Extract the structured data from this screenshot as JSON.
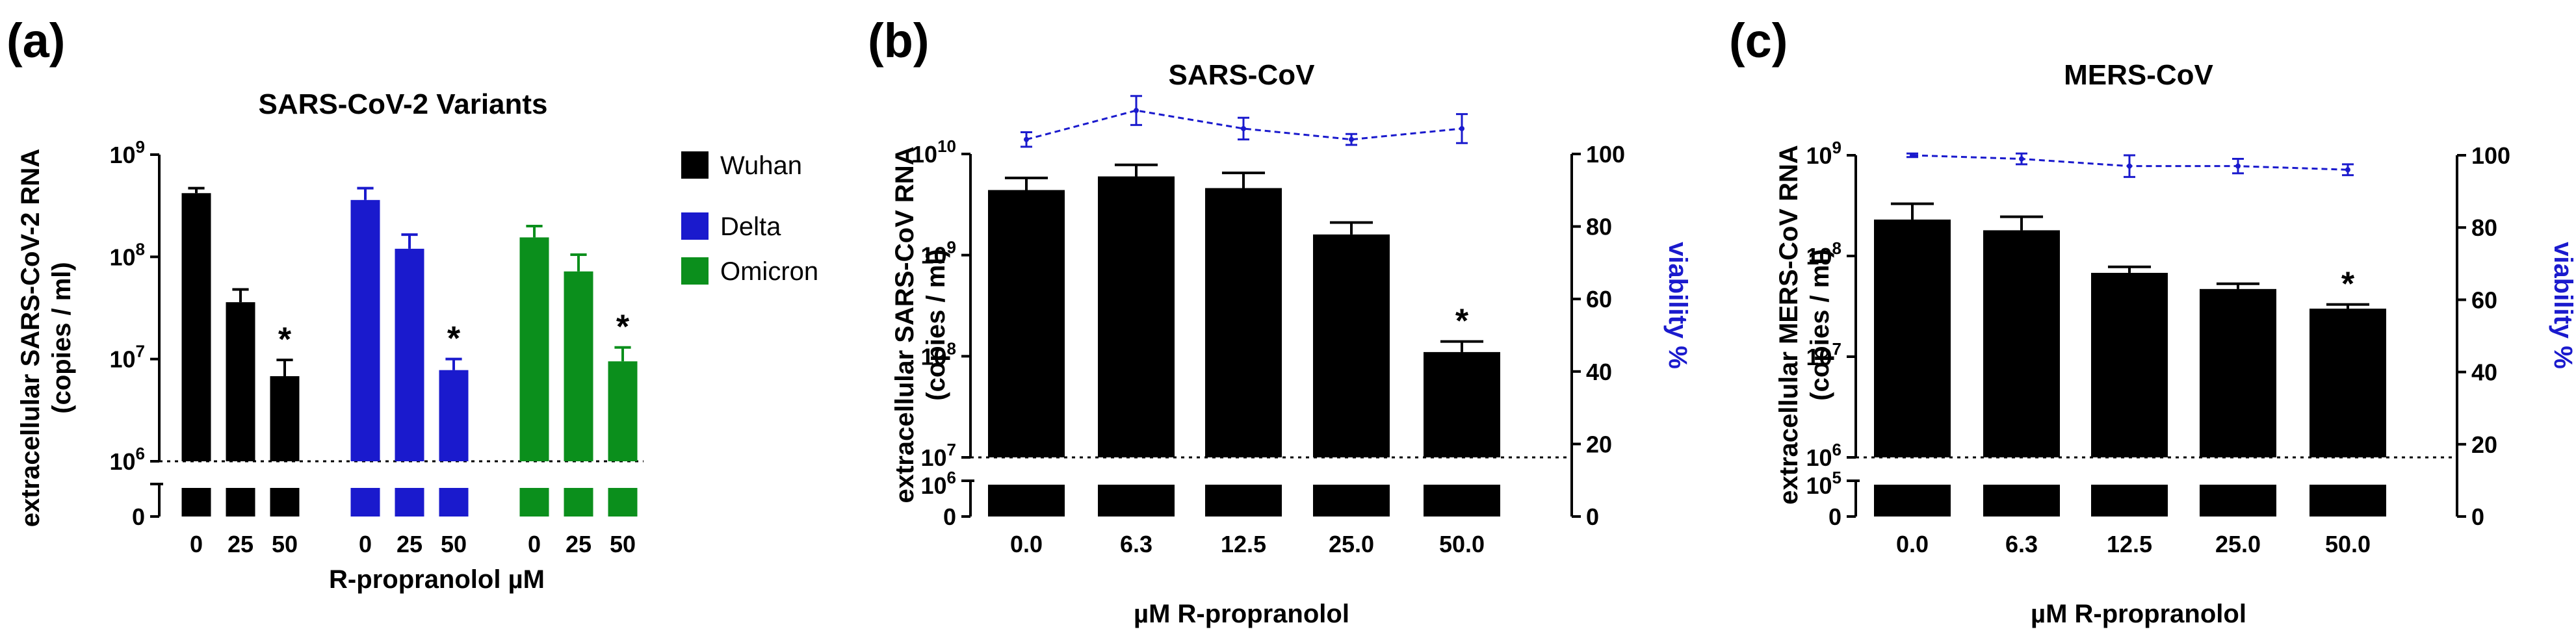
{
  "colors": {
    "black": "#000000",
    "wuhan": "#000000",
    "delta": "#1a1acd",
    "omicron": "#0b8f1c",
    "viability": "#1a1acd"
  },
  "chart_data": [
    {
      "type": "bar",
      "panel_label": "(a)",
      "title": "SARS-CoV-2 Variants",
      "xlabel": "R-propranolol µM",
      "ylabel_line1": "extracellular SARS-CoV-2 RNA",
      "ylabel_line2": "(copies / ml)",
      "y_scale": "log10 (broken axis: 0 below break)",
      "ylim": [
        1000000,
        1000000000
      ],
      "y_ticks": [
        {
          "value": 1000000000,
          "base": "10",
          "exp": "9"
        },
        {
          "value": 100000000,
          "base": "10",
          "exp": "8"
        },
        {
          "value": 10000000,
          "base": "10",
          "exp": "7"
        },
        {
          "value": 1000000,
          "base": "10",
          "exp": "6"
        }
      ],
      "y_zero_label": "0",
      "categories": [
        "0",
        "25",
        "50"
      ],
      "legend": [
        "Wuhan",
        "Delta",
        "Omicron"
      ],
      "series": [
        {
          "name": "Wuhan",
          "color": "#000000",
          "values": [
            420000000,
            36000000,
            6800000
          ],
          "error": [
            470000000,
            48000000,
            9800000
          ],
          "stars": [
            false,
            false,
            true
          ]
        },
        {
          "name": "Delta",
          "color": "#1a1acd",
          "values": [
            360000000,
            120000000,
            7800000
          ],
          "error": [
            470000000,
            165000000,
            10000000
          ],
          "stars": [
            false,
            false,
            true
          ]
        },
        {
          "name": "Omicron",
          "color": "#0b8f1c",
          "values": [
            155000000,
            72000000,
            9500000
          ],
          "error": [
            200000000,
            105000000,
            13000000
          ],
          "stars": [
            false,
            false,
            true
          ]
        }
      ],
      "star_label": "*"
    },
    {
      "type": "bar",
      "panel_label": "(b)",
      "title": "SARS-CoV",
      "xlabel": "µM R-propranolol",
      "ylabel_line1": "extracellular SARS-CoV RNA",
      "ylabel_line2": "(copies / ml)",
      "y2label": "viability %",
      "ylim": [
        10000000,
        10000000000
      ],
      "y_ticks": [
        {
          "value": 10000000000,
          "base": "10",
          "exp": "10"
        },
        {
          "value": 1000000000,
          "base": "10",
          "exp": "9"
        },
        {
          "value": 100000000,
          "base": "10",
          "exp": "8"
        },
        {
          "value": 10000000,
          "base": "10",
          "exp": "7"
        }
      ],
      "y_break_tick": {
        "base": "10",
        "exp": "6"
      },
      "y_zero_label": "0",
      "y2_ticks": [
        "100",
        "80",
        "60",
        "40",
        "20",
        "0"
      ],
      "y2lim": [
        0,
        100
      ],
      "categories": [
        "0.0",
        "6.3",
        "12.5",
        "25.0",
        "50.0"
      ],
      "values": [
        4400000000,
        6000000000,
        4600000000,
        1600000000,
        110000000
      ],
      "error": [
        5800000000,
        7800000000,
        6500000000,
        2100000000,
        140000000
      ],
      "stars": [
        false,
        false,
        false,
        false,
        true
      ],
      "viability": [
        104,
        112,
        107,
        104,
        107
      ],
      "viability_err": [
        2,
        4,
        3,
        1.5,
        4
      ],
      "star_label": "*"
    },
    {
      "type": "bar",
      "panel_label": "(c)",
      "title": "MERS-CoV",
      "xlabel": "µM R-propranolol",
      "ylabel_line1": "extracellular MERS-CoV RNA",
      "ylabel_line2": "(copies / ml)",
      "y2label": "viability %",
      "ylim": [
        1000000,
        1000000000
      ],
      "y_ticks": [
        {
          "value": 1000000000,
          "base": "10",
          "exp": "9"
        },
        {
          "value": 100000000,
          "base": "10",
          "exp": "8"
        },
        {
          "value": 10000000,
          "base": "10",
          "exp": "7"
        },
        {
          "value": 1000000,
          "base": "10",
          "exp": "6"
        }
      ],
      "y_break_tick": {
        "base": "10",
        "exp": "5"
      },
      "y_zero_label": "0",
      "y2_ticks": [
        "100",
        "80",
        "60",
        "40",
        "20",
        "0"
      ],
      "y2lim": [
        0,
        100
      ],
      "categories": [
        "0.0",
        "6.3",
        "12.5",
        "25.0",
        "50.0"
      ],
      "values": [
        230000000,
        180000000,
        68000000,
        47000000,
        30000000
      ],
      "error": [
        330000000,
        245000000,
        78000000,
        53000000,
        33000000
      ],
      "stars": [
        false,
        false,
        false,
        false,
        true
      ],
      "viability": [
        100,
        99,
        97,
        97,
        96
      ],
      "viability_err": [
        0.5,
        1.5,
        3,
        2,
        1.5
      ],
      "star_label": "*"
    }
  ]
}
